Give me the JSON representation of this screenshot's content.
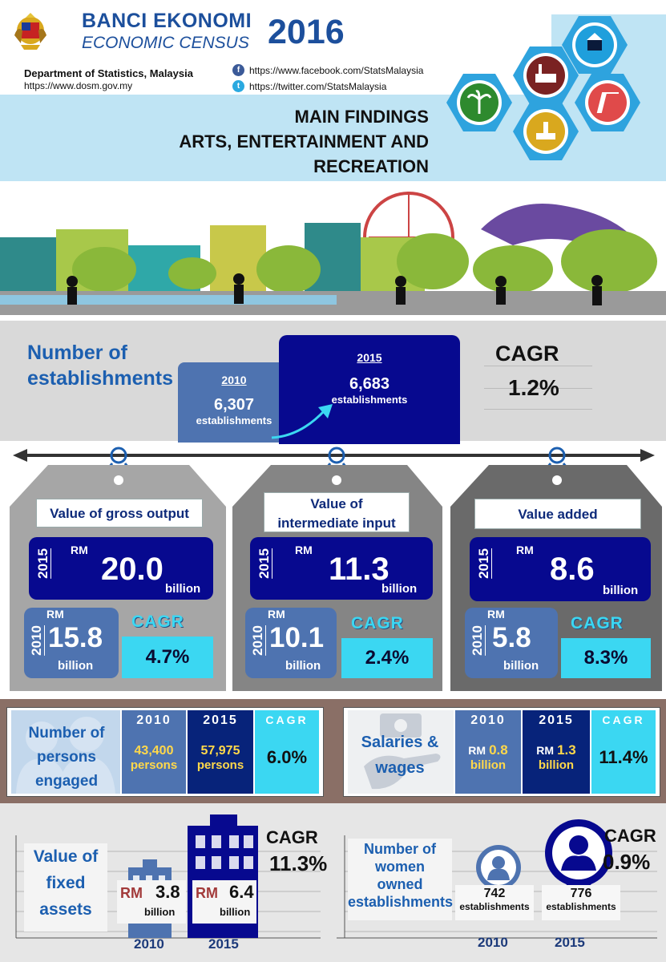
{
  "header": {
    "title_bm": "BANCI EKONOMI",
    "title_en": "ECONOMIC CENSUS",
    "year": "2016",
    "dept": "Department of Statistics, Malaysia",
    "website": "https://www.dosm.gov.my",
    "facebook": "https://www.facebook.com/StatsMalaysia",
    "twitter": "https://twitter.com/StatsMalaysia",
    "main_findings": "MAIN FINDINGS",
    "sector_line1": "ARTS, ENTERTAINMENT AND",
    "sector_line2": "RECREATION"
  },
  "establishments": {
    "title_line1": "Number of",
    "title_line2": "establishments",
    "y2010": "2010",
    "v2010": "6,307",
    "u2010": "establishments",
    "y2015": "2015",
    "v2015": "6,683",
    "u2015": "establishments",
    "cagr_label": "CAGR",
    "cagr": "1.2%"
  },
  "panels": [
    {
      "title": "Value of gross output",
      "y2015": "2015",
      "rm": "RM",
      "v2015": "20.0",
      "b2015": "billion",
      "y2010": "2010",
      "v2010": "15.8",
      "b2010": "billion",
      "cagr_label": "CAGR",
      "cagr": "4.7%"
    },
    {
      "title_line1": "Value of",
      "title_line2": "intermediate input",
      "y2015": "2015",
      "rm": "RM",
      "v2015": "11.3",
      "b2015": "billion",
      "y2010": "2010",
      "v2010": "10.1",
      "b2010": "billion",
      "cagr_label": "CAGR",
      "cagr": "2.4%"
    },
    {
      "title": "Value added",
      "y2015": "2015",
      "rm": "RM",
      "v2015": "8.6",
      "b2015": "billion",
      "y2010": "2010",
      "v2010": "5.8",
      "b2010": "billion",
      "cagr_label": "CAGR",
      "cagr": "8.3%"
    }
  ],
  "persons": {
    "title_line1": "Number of",
    "title_line2": "persons",
    "title_line3": "engaged",
    "y2010": "2010",
    "v2010": "43,400",
    "u2010": "persons",
    "y2015": "2015",
    "v2015": "57,975",
    "u2015": "persons",
    "cagr_label": "CAGR",
    "cagr": "6.0%"
  },
  "salaries": {
    "title_line1": "Salaries &",
    "title_line2": "wages",
    "y2010": "2010",
    "rm": "RM",
    "v2010": "0.8",
    "b2010": "billion",
    "y2015": "2015",
    "v2015": "1.3",
    "b2015": "billion",
    "cagr_label": "CAGR",
    "cagr": "11.4%"
  },
  "fixed_assets": {
    "title_line1": "Value of",
    "title_line2": "fixed",
    "title_line3": "assets",
    "rm": "RM",
    "v2010": "3.8",
    "b2010": "billion",
    "y2010": "2010",
    "v2015": "6.4",
    "b2015": "billion",
    "y2015": "2015",
    "cagr_label": "CAGR",
    "cagr": "11.3%"
  },
  "women": {
    "title_line1": "Number of",
    "title_line2": "women",
    "title_line3": "owned",
    "title_line4": "establishments",
    "v2010": "742",
    "u2010": "establishments",
    "y2010": "2010",
    "v2015": "776",
    "u2015": "establishments",
    "y2015": "2015",
    "cagr_label": "CAGR",
    "cagr": "0.9%"
  },
  "colors": {
    "navy": "#07098f",
    "steel": "#4e73b0",
    "cyan": "#3bd7f2",
    "title_blue": "#1c4f9c",
    "brown": "#8a6f66"
  }
}
